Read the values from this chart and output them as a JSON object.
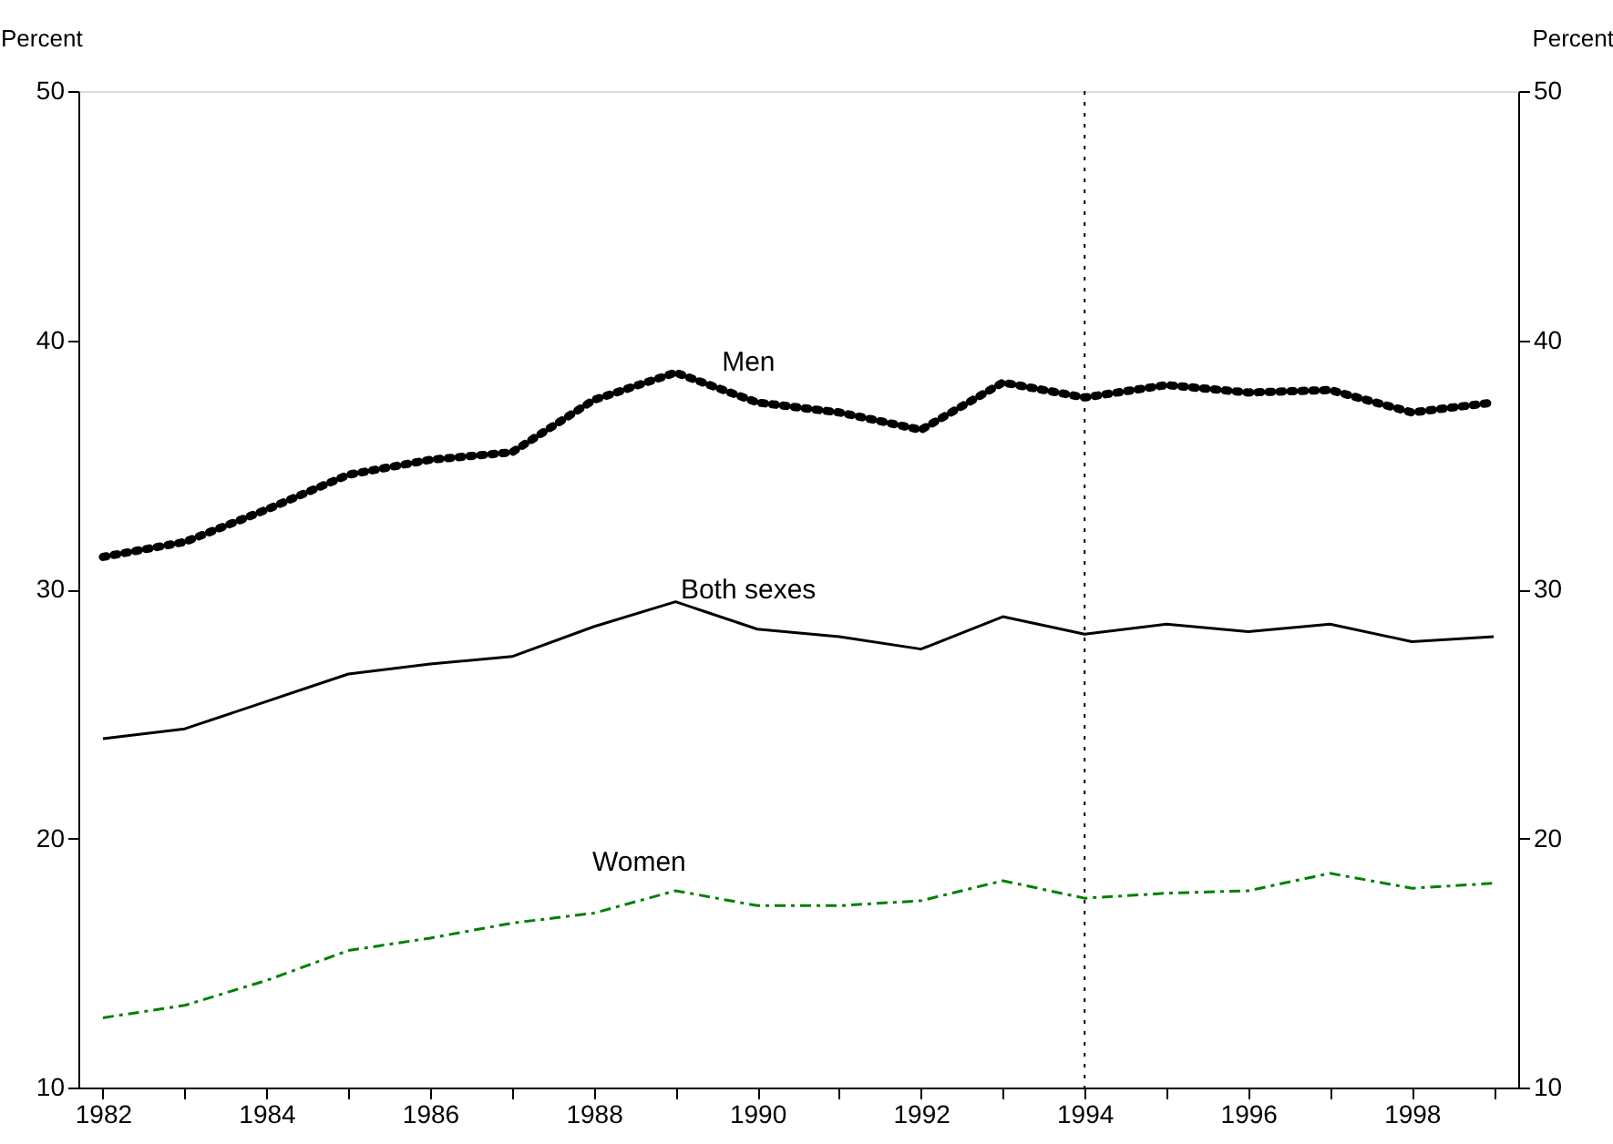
{
  "chart_data": {
    "type": "line",
    "x": [
      1982,
      1983,
      1984,
      1985,
      1986,
      1987,
      1988,
      1989,
      1990,
      1991,
      1992,
      1993,
      1994,
      1995,
      1996,
      1997,
      1998,
      1999
    ],
    "series": [
      {
        "name": "Men",
        "color": "#000000",
        "line_style": "dotted",
        "values": [
          31.3,
          31.9,
          33.2,
          34.6,
          35.2,
          35.5,
          37.6,
          38.7,
          37.5,
          37.1,
          36.4,
          38.3,
          37.7,
          38.2,
          37.9,
          38.0,
          37.1,
          37.5
        ]
      },
      {
        "name": "Both sexes",
        "color": "#000000",
        "line_style": "solid",
        "values": [
          24.0,
          24.4,
          25.5,
          26.6,
          27.0,
          27.3,
          28.5,
          29.5,
          28.4,
          28.1,
          27.6,
          28.9,
          28.2,
          28.6,
          28.3,
          28.6,
          27.9,
          28.1
        ]
      },
      {
        "name": "Women",
        "color": "#008000",
        "line_style": "dashed",
        "values": [
          12.8,
          13.3,
          14.3,
          15.5,
          16.0,
          16.6,
          17.0,
          17.9,
          17.3,
          17.3,
          17.5,
          18.3,
          17.6,
          17.8,
          17.9,
          18.6,
          18.0,
          18.2
        ]
      }
    ],
    "ylabel": "Percent",
    "y2label": "Percent",
    "xlim": [
      1981.7,
      1999.3
    ],
    "xticks": [
      1982,
      {
        "value": 1983,
        "label": null
      },
      1984,
      {
        "value": 1985,
        "label": null
      },
      1986,
      {
        "value": 1987,
        "label": null
      },
      1988,
      {
        "value": 1989,
        "label": null
      },
      1990,
      {
        "value": 1991,
        "label": null
      },
      1992,
      {
        "value": 1993,
        "label": null
      },
      1994,
      {
        "value": 1995,
        "label": null
      },
      1996,
      {
        "value": 1997,
        "label": null
      },
      1998,
      {
        "value": 1999,
        "label": null
      }
    ],
    "ylim": [
      10,
      50
    ],
    "yticks": [
      10,
      20,
      30,
      40,
      50
    ],
    "y2lim": [
      10,
      50
    ],
    "y2ticks": [
      10,
      20,
      30,
      40,
      50
    ],
    "ref_lines": [
      {
        "axis": "x",
        "value": 1994,
        "line_style": "dotted",
        "color": "#000000"
      }
    ],
    "grid": false
  }
}
